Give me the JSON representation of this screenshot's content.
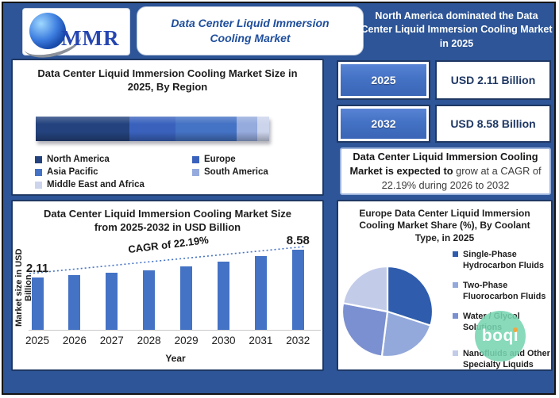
{
  "theme": {
    "frame_blue": "#2d5597",
    "panel_border_navy": "#1f3864",
    "primary_bar_blue": "#4472c4",
    "banner_title_navy": "#1f4e9c",
    "watermark_green": "#78d5b2"
  },
  "header": {
    "logo": "MMR",
    "title": "Data Center Liquid Immersion Cooling Market",
    "highlight": "North America dominated the Data Center Liquid Immersion Cooling Market in 2025"
  },
  "stats": {
    "rows": [
      {
        "year": "2025",
        "value": "USD 2.11 Billion"
      },
      {
        "year": "2032",
        "value": "USD 8.58 Billion"
      }
    ],
    "note_bold": "Data Center Liquid Immersion Cooling Market is expected to",
    "note_regular": " grow at a CAGR of 22.19% during 2026 to 2032"
  },
  "watermark": {
    "text": "boqi"
  },
  "chart_data": [
    {
      "type": "bar",
      "subtype": "horizontal-stacked",
      "title": "Data Center Liquid Immersion Cooling Market Size in 2025, By Region",
      "categories": [
        "North America",
        "Europe",
        "Asia Pacific",
        "South America",
        "Middle East and Africa"
      ],
      "values": [
        40,
        20,
        26,
        9,
        5
      ],
      "unit": "percent-share-estimated-from-segment-widths",
      "colors": [
        "#24437e",
        "#3a62bd",
        "#4472c4",
        "#95aadd",
        "#ccd4ec"
      ],
      "legend_position": "bottom"
    },
    {
      "type": "bar",
      "title": "Data Center Liquid Immersion Cooling Market Size from 2025-2032 in USD Billion",
      "categories": [
        "2025",
        "2026",
        "2027",
        "2028",
        "2029",
        "2030",
        "2031",
        "2032"
      ],
      "values": [
        2.11,
        2.58,
        3.15,
        3.85,
        4.7,
        5.75,
        7.02,
        8.58
      ],
      "value_labels": [
        {
          "index": 0,
          "text": "2.11"
        },
        {
          "index": 7,
          "text": "8.58"
        }
      ],
      "xlabel": "Year",
      "ylabel": "Market size in USD Billion",
      "annotation": "CAGR of 22.19%",
      "bar_color": "#4472c4",
      "trendline": "dotted",
      "grid": false
    },
    {
      "type": "pie",
      "title": "Europe Data Center Liquid Immersion Cooling Market  Share (%), By Coolant Type, in 2025",
      "labels": [
        "Single-Phase Hydrocarbon Fluids",
        "Two-Phase Fluorocarbon Fluids",
        "Water / Glycol Solutions",
        "Nanofluids and Other Specialty Liquids"
      ],
      "values": [
        30,
        22,
        26,
        22
      ],
      "colors": [
        "#2f5cac",
        "#93a9db",
        "#7b90d0",
        "#c2cce9"
      ],
      "legend_position": "right"
    }
  ]
}
